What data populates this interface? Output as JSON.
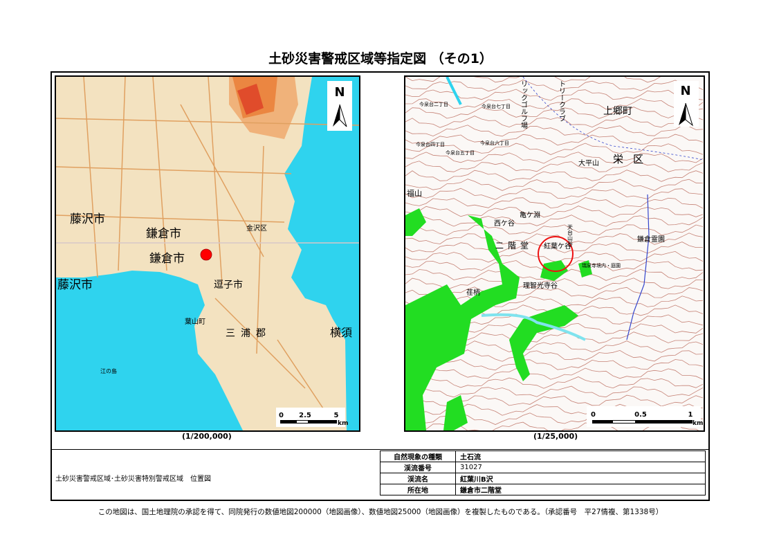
{
  "title": "土砂災害警戒区域等指定図 （その1）",
  "overview_map": {
    "scale": "(1/200,000)",
    "north_label": "N",
    "scale_bar": {
      "ticks": [
        "0",
        "2.5",
        "5"
      ],
      "unit": "km"
    },
    "labels": [
      "藤沢市",
      "鎌倉市",
      "鎌倉市",
      "藤沢市",
      "逗子市",
      "三浦郡",
      "横須",
      "葉山町",
      "金沢区",
      "江の島"
    ],
    "marker_color": "#ff0000",
    "sea_color": "#2fd3ee"
  },
  "detail_map": {
    "scale": "(1/25,000)",
    "north_label": "N",
    "scale_bar": {
      "ticks": [
        "0",
        "0.5",
        "1"
      ],
      "unit": "km"
    },
    "labels": [
      "上郷町",
      "栄区",
      "大平山",
      "紅葉ケ谷",
      "二階堂",
      "亀ケ淵",
      "西ケ谷",
      "天台山谷",
      "鎌倉霊園",
      "理智光寺谷",
      "荏柄",
      "リックゴルフ場",
      "トリークラブ",
      "今泉台六丁目",
      "今泉台五丁目",
      "今泉台四丁目",
      "今泉台二丁目",
      "今泉台七丁目",
      "瑞泉寺境内・庭園",
      "福山"
    ],
    "marker_color": "#ff0000",
    "green_color": "#22dd22",
    "contour_color": "#b35a4a"
  },
  "legend_title": "土砂災害警戒区域･土砂災害特別警戒区域　位置図",
  "info_table": [
    {
      "key": "自然現象の種類",
      "value": "土石流"
    },
    {
      "key": "渓流番号",
      "value": "31027"
    },
    {
      "key": "渓流名",
      "value": "紅葉川B沢"
    },
    {
      "key": "所在地",
      "value": "鎌倉市二階堂"
    }
  ],
  "footer": "この地図は、国土地理院の承認を得て、同院発行の数値地図200000（地図画像）、数値地図25000（地図画像）を複製したものである。（承認番号　平27情複、第1338号）"
}
